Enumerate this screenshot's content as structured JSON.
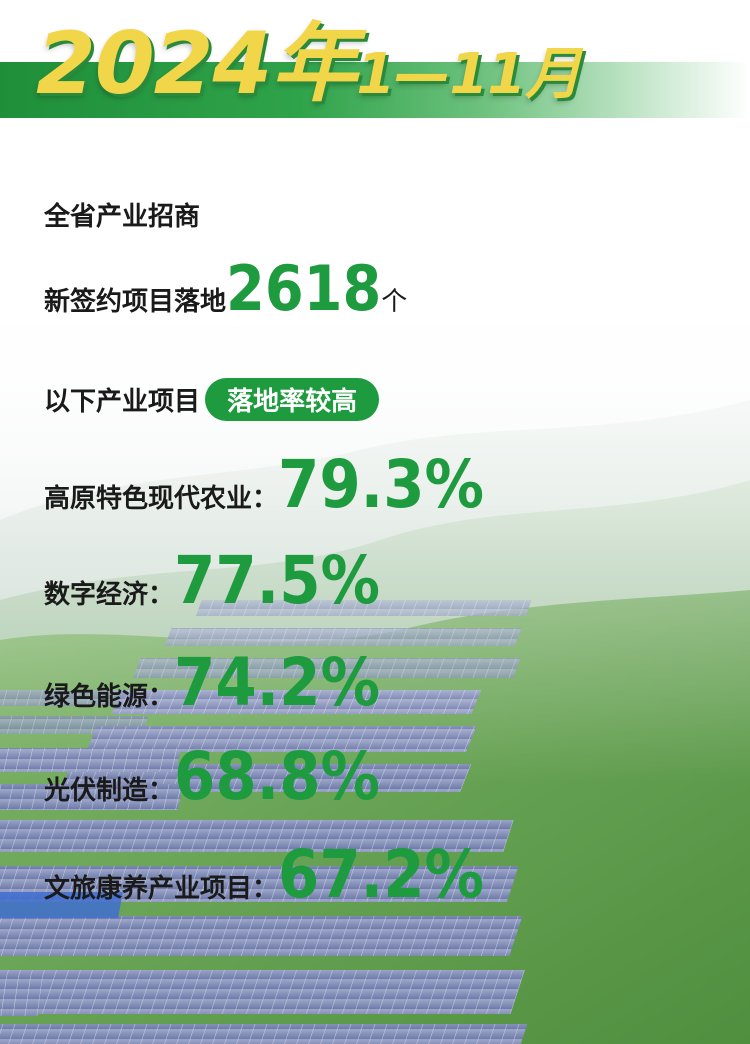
{
  "header": {
    "year": "2024年",
    "months": "1—11月"
  },
  "intro": {
    "line1": "全省产业招商",
    "line2_prefix": "新签约项目落地",
    "line2_number": "2618",
    "line2_unit": "个",
    "line3_prefix": "以下产业项目",
    "line3_badge": "落地率较高"
  },
  "rates": [
    {
      "label": "高原特色现代农业：",
      "value": "79.3%"
    },
    {
      "label": "数字经济：",
      "value": "77.5%"
    },
    {
      "label": "绿色能源：",
      "value": "74.2%"
    },
    {
      "label": "光伏制造：",
      "value": "68.8%"
    },
    {
      "label": "文旅康养产业项目：",
      "value": "67.2%"
    }
  ],
  "colors": {
    "accent_green": "#1e9a3f",
    "title_gold": "#f2d64a",
    "text_dark": "#1a1a1a"
  }
}
